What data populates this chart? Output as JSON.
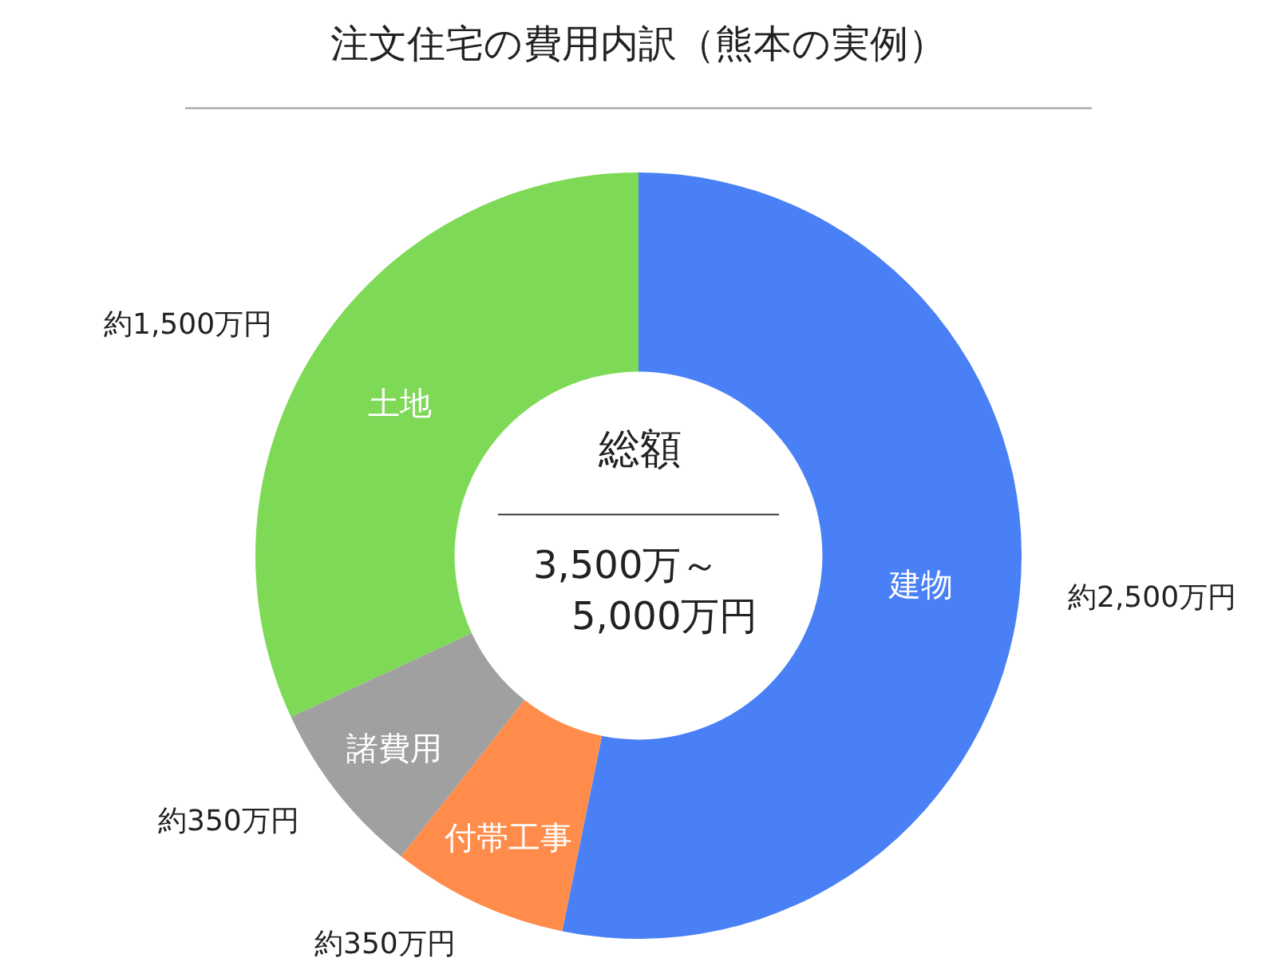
{
  "chart_data": {
    "type": "donut",
    "title": "注文住宅の費用内訳（熊本の実例）",
    "categories": [
      "建物",
      "付帯工事",
      "諸費用",
      "土地"
    ],
    "values": [
      2500,
      350,
      350,
      1500
    ],
    "value_labels": [
      "約2,500万円",
      "約350万円",
      "約350万円",
      "約1,500万円"
    ],
    "colors": [
      "#4a80f5",
      "#ff8c4a",
      "#a0a0a0",
      "#7ed957"
    ],
    "annotations": [
      "総額",
      "3,500万～",
      "5,000万円"
    ],
    "legend": false
  }
}
